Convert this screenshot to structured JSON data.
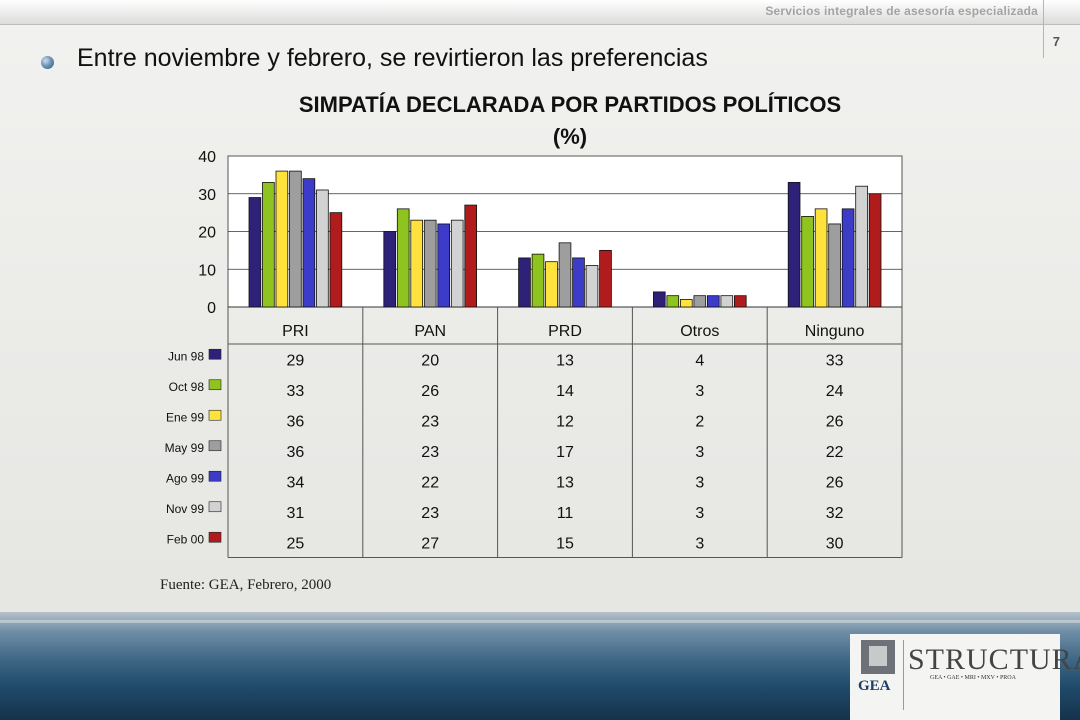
{
  "header": {
    "text": "Servicios integrales de asesoría especializada",
    "page_number": "7"
  },
  "slide": {
    "subtitle": "Entre noviembre y febrero, se revirtieron las preferencias"
  },
  "chart_data": {
    "type": "bar",
    "title": "SIMPATÍA DECLARADA POR PARTIDOS POLÍTICOS",
    "subtitle": "(%)",
    "categories": [
      "PRI",
      "PAN",
      "PRD",
      "Otros",
      "Ninguno"
    ],
    "ylim": [
      0,
      40
    ],
    "yticks": [
      0,
      10,
      20,
      30,
      40
    ],
    "grid": true,
    "legend_placement": "left (data table)",
    "series": [
      {
        "name": "Jun 98",
        "color": "#2e2278",
        "values": [
          29,
          20,
          13,
          4,
          33
        ]
      },
      {
        "name": "Oct 98",
        "color": "#8fc31f",
        "values": [
          33,
          26,
          14,
          3,
          24
        ]
      },
      {
        "name": "Ene 99",
        "color": "#ffe33c",
        "values": [
          36,
          23,
          12,
          2,
          26
        ]
      },
      {
        "name": "May 99",
        "color": "#9e9e9e",
        "values": [
          36,
          23,
          17,
          3,
          22
        ]
      },
      {
        "name": "Ago 99",
        "color": "#3c3cc8",
        "values": [
          34,
          22,
          13,
          3,
          26
        ]
      },
      {
        "name": "Nov 99",
        "color": "#d2d2d2",
        "values": [
          31,
          23,
          11,
          3,
          32
        ]
      },
      {
        "name": "Feb 00",
        "color": "#b01c1c",
        "values": [
          25,
          27,
          15,
          3,
          30
        ]
      }
    ]
  },
  "source": "Fuente: GEA, Febrero, 2000",
  "footer": {
    "logo_left": "GEA",
    "logo_right": "STRUCTURA",
    "logo_right_sub": "GEA • GAE • MRI • MXV • PROA"
  }
}
